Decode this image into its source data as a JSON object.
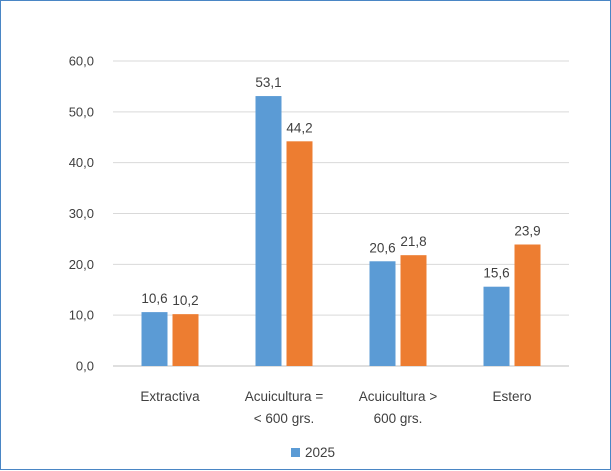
{
  "chart_data": {
    "type": "bar",
    "categories": [
      [
        "Extractiva"
      ],
      [
        "Acuicultura =",
        "< 600 grs."
      ],
      [
        "Acuicultura >",
        "600 grs."
      ],
      [
        "Estero"
      ]
    ],
    "series": [
      {
        "name": "",
        "color": "#5b9bd5",
        "values": [
          10.6,
          53.1,
          20.6,
          15.6
        ],
        "labels": [
          "10,6",
          "53,1",
          "20,6",
          "15,6"
        ]
      },
      {
        "name": "2025",
        "color": "#ed7d31",
        "values": [
          10.2,
          44.2,
          21.8,
          23.9
        ],
        "labels": [
          "10,2",
          "44,2",
          "21,8",
          "23,9"
        ]
      }
    ],
    "ylim": [
      0,
      60
    ],
    "yticks": [
      "0,0",
      "10,0",
      "20,0",
      "30,0",
      "40,0",
      "50,0",
      "60,0"
    ],
    "grid": true,
    "legend": {
      "position": "bottom",
      "label": "2025",
      "color": "#5b9bd5"
    },
    "title": "",
    "xlabel": "",
    "ylabel": ""
  }
}
